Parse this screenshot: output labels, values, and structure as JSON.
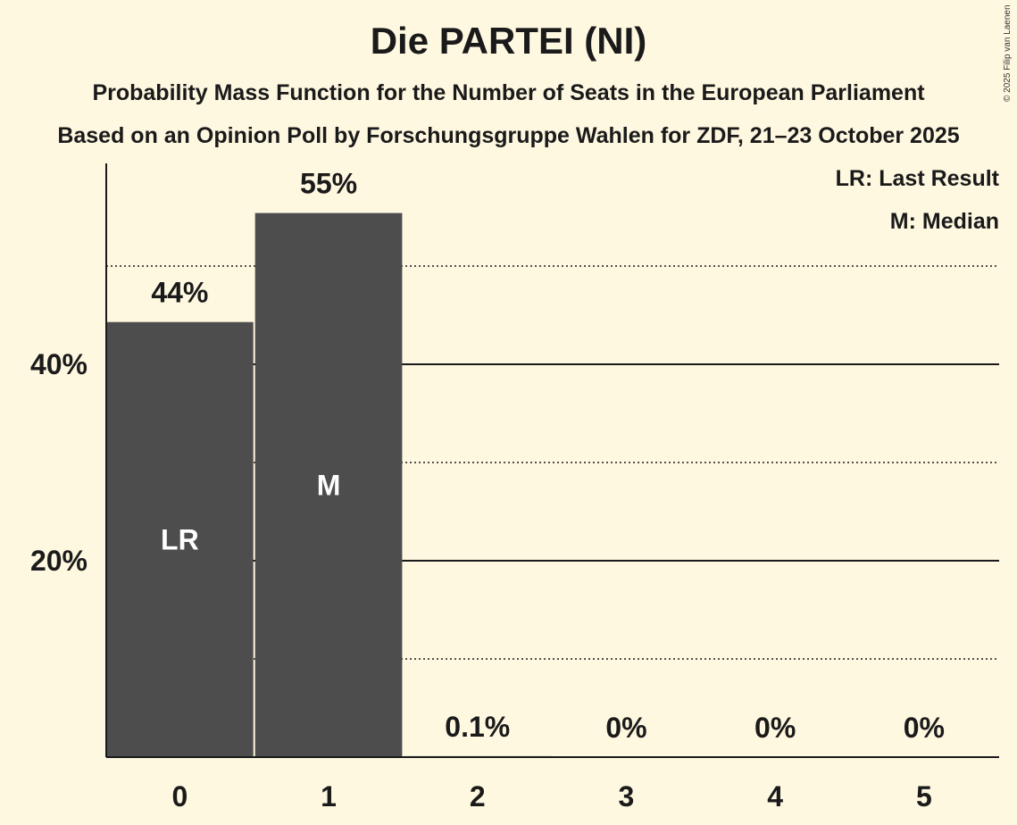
{
  "title": "Die PARTEI (NI)",
  "subtitle": "Probability Mass Function for the Number of Seats in the European Parliament",
  "source_line": "Based on an Opinion Poll by Forschungsgruppe Wahlen for ZDF, 21–23 October 2025",
  "legend": {
    "last_result": "LR: Last Result",
    "median": "M: Median"
  },
  "copyright": "© 2025 Filip van Laenen",
  "colors": {
    "background": "#fff8e1",
    "bar": "#4d4d4d",
    "text": "#1a1a1a",
    "marker_text": "#ffffff"
  },
  "chart_data": {
    "type": "bar",
    "categories": [
      "0",
      "1",
      "2",
      "3",
      "4",
      "5"
    ],
    "values": [
      44.3,
      55.4,
      0.1,
      0,
      0,
      0
    ],
    "value_labels": [
      "44%",
      "55%",
      "0.1%",
      "0%",
      "0%",
      "0%"
    ],
    "markers": [
      {
        "category": "0",
        "label": "LR"
      },
      {
        "category": "1",
        "label": "M"
      }
    ],
    "y_ticks": [
      {
        "value": 20,
        "label": "20%"
      },
      {
        "value": 40,
        "label": "40%"
      }
    ],
    "minor_gridlines": [
      10,
      30,
      50
    ],
    "ylim": [
      0,
      60
    ],
    "grid": true,
    "legend_position": "top-right"
  }
}
